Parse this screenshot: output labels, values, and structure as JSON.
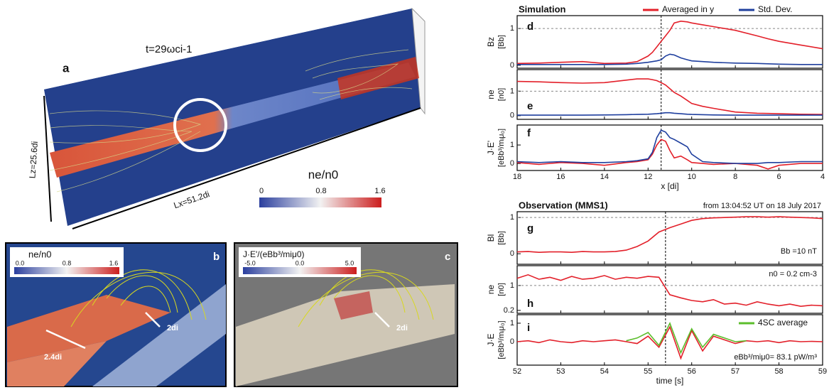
{
  "figure": {
    "panel_a": {
      "label": "a",
      "time": "t=29ωci-1",
      "lz": "Lz=25.6di",
      "lx": "Lx=51.2di",
      "colorbar_title": "ne/n0",
      "colorbar_ticks": [
        "0",
        "0.8",
        "1.6"
      ]
    },
    "panel_b": {
      "label": "b",
      "colorbar_title": "ne/n0",
      "colorbar_ticks": [
        "0.0",
        "0.8",
        "1.6"
      ],
      "width_label": "2.4di",
      "depth_label": "2di"
    },
    "panel_c": {
      "label": "c",
      "colorbar_title": "J·E'/(eBb³/miμ0)",
      "colorbar_ticks": [
        "-5.0",
        "0.0",
        "5.0"
      ],
      "depth_label": "2di"
    }
  },
  "chart_data": [
    {
      "type": "line",
      "title": "Simulation",
      "panel": "d",
      "ylabel": "Bz",
      "yunit": "[Bb]",
      "x": [
        18,
        17,
        16,
        15,
        14,
        13,
        12.5,
        12,
        11.8,
        11.6,
        11.4,
        11.2,
        11,
        10.8,
        10.5,
        10.2,
        10,
        9.5,
        9,
        8,
        7,
        6.5,
        6,
        5,
        4
      ],
      "series": [
        {
          "name": "Averaged in y",
          "color": "#e3202a",
          "values": [
            0.05,
            0.06,
            0.08,
            0.1,
            0.05,
            0.06,
            0.1,
            0.25,
            0.35,
            0.5,
            0.65,
            0.8,
            0.95,
            1.15,
            1.2,
            1.18,
            1.15,
            1.1,
            1.05,
            0.95,
            0.8,
            0.72,
            0.65,
            0.55,
            0.45
          ]
        },
        {
          "name": "Std. Dev.",
          "color": "#1f3f9e",
          "values": [
            0.02,
            0.02,
            0.02,
            0.02,
            0.02,
            0.03,
            0.05,
            0.08,
            0.1,
            0.12,
            0.15,
            0.25,
            0.3,
            0.28,
            0.2,
            0.15,
            0.12,
            0.1,
            0.08,
            0.06,
            0.05,
            0.04,
            0.03,
            0.02,
            0.02
          ]
        }
      ],
      "xlim": [
        18,
        4
      ],
      "xticks": [
        18,
        16,
        14,
        12,
        10,
        8,
        6,
        4
      ],
      "ylim": [
        -0.08,
        1.35
      ],
      "yticks": [
        0,
        1
      ],
      "hline": 1,
      "vline": 11.4
    },
    {
      "type": "line",
      "panel": "e",
      "ylabel": "ne",
      "yunit": "[n0]",
      "x": [
        18,
        17,
        16,
        15,
        14,
        13,
        12.5,
        12,
        11.8,
        11.6,
        11.4,
        11.2,
        11,
        10.8,
        10.5,
        10.2,
        10,
        9.5,
        9,
        8,
        7,
        6.5,
        6,
        5,
        4
      ],
      "series": [
        {
          "color": "#e3202a",
          "values": [
            1.4,
            1.38,
            1.35,
            1.33,
            1.35,
            1.45,
            1.5,
            1.5,
            1.47,
            1.43,
            1.35,
            1.25,
            1.1,
            0.95,
            0.8,
            0.62,
            0.5,
            0.38,
            0.3,
            0.15,
            0.1,
            0.09,
            0.08,
            0.06,
            0.05
          ]
        },
        {
          "color": "#1f3f9e",
          "values": [
            0.02,
            0.02,
            0.02,
            0.02,
            0.03,
            0.04,
            0.05,
            0.06,
            0.07,
            0.08,
            0.1,
            0.12,
            0.12,
            0.1,
            0.08,
            0.06,
            0.05,
            0.04,
            0.03,
            0.02,
            0.02,
            0.02,
            0.02,
            0.02,
            0.02
          ]
        }
      ],
      "xlim": [
        18,
        4
      ],
      "xticks": [
        18,
        16,
        14,
        12,
        10,
        8,
        6,
        4
      ],
      "ylim": [
        -0.15,
        1.88
      ],
      "yticks": [
        0,
        1
      ],
      "hline": 1,
      "vline": 11.4
    },
    {
      "type": "line",
      "panel": "f",
      "ylabel": "J·E'",
      "yunit": "[eBb³/mᵢμ₀]",
      "xlabel": "x [di]",
      "x": [
        18,
        17,
        16,
        15,
        14,
        13,
        12.5,
        12,
        11.8,
        11.6,
        11.4,
        11.2,
        11,
        10.8,
        10.5,
        10.2,
        10,
        9.5,
        9,
        8,
        7,
        6.5,
        6,
        5,
        4
      ],
      "series": [
        {
          "color": "#e3202a",
          "values": [
            0.05,
            -0.05,
            0.05,
            0,
            -0.1,
            0.05,
            0.1,
            0.2,
            0.5,
            1.0,
            1.3,
            1.2,
            0.7,
            0.3,
            0.4,
            0.2,
            0.05,
            0,
            -0.05,
            0,
            -0.1,
            -0.3,
            -0.1,
            0,
            0
          ]
        },
        {
          "color": "#1f3f9e",
          "values": [
            0.1,
            0.05,
            0.1,
            0.05,
            0.05,
            0.1,
            0.15,
            0.25,
            0.6,
            1.4,
            1.8,
            1.7,
            1.4,
            1.3,
            1.1,
            0.9,
            0.5,
            0.1,
            0.05,
            0,
            0,
            0.05,
            0.05,
            0.1,
            0.1
          ]
        }
      ],
      "xlim": [
        18,
        4
      ],
      "xticks": [
        18,
        16,
        14,
        12,
        10,
        8,
        6,
        4
      ],
      "ylim": [
        -0.38,
        2.08
      ],
      "yticks": [
        0,
        1
      ],
      "vline": 11.4
    },
    {
      "type": "line",
      "title": "Observation (MMS1)",
      "subtitle": "from 13:04:52 UT on 18 July 2017",
      "panel": "g",
      "ylabel": "Bl",
      "yunit": "[Bb]",
      "annotation": "Bb =10 nT",
      "x": [
        52,
        52.25,
        52.5,
        52.75,
        53,
        53.25,
        53.5,
        53.75,
        54,
        54.25,
        54.5,
        54.75,
        55,
        55.25,
        55.5,
        55.75,
        56,
        56.25,
        56.5,
        56.75,
        57,
        57.25,
        57.5,
        57.75,
        58,
        58.25,
        58.5,
        58.75,
        59
      ],
      "series": [
        {
          "color": "#e3202a",
          "values": [
            0.05,
            0.06,
            0.04,
            0.05,
            0.05,
            0.04,
            0.06,
            0.05,
            0.05,
            0.06,
            0.1,
            0.2,
            0.35,
            0.6,
            0.72,
            0.82,
            0.92,
            0.97,
            0.99,
            1.0,
            1.01,
            1.02,
            1.02,
            1.01,
            1.02,
            1.01,
            1.0,
            0.99,
            0.97
          ]
        }
      ],
      "xlim": [
        52,
        59
      ],
      "xticks": [
        52,
        53,
        54,
        55,
        56,
        57,
        58,
        59
      ],
      "ylim": [
        -0.29,
        1.16
      ],
      "yticks": [
        0,
        1
      ],
      "hline": 1,
      "vline": 55.4
    },
    {
      "type": "line",
      "panel": "h",
      "ylabel": "ne",
      "yunit": "[n0]",
      "annotation": "n0 = 0.2 cm-3",
      "log_y": true,
      "x": [
        52,
        52.25,
        52.5,
        52.75,
        53,
        53.25,
        53.5,
        53.75,
        54,
        54.25,
        54.5,
        54.75,
        55,
        55.25,
        55.5,
        55.75,
        56,
        56.25,
        56.5,
        56.75,
        57,
        57.25,
        57.5,
        57.75,
        58,
        58.25,
        58.5,
        58.75,
        59
      ],
      "series": [
        {
          "color": "#e3202a",
          "values": [
            1.6,
            2.0,
            1.5,
            1.7,
            1.4,
            1.8,
            1.5,
            1.6,
            1.9,
            1.5,
            1.7,
            1.6,
            1.8,
            1.7,
            0.55,
            0.45,
            0.38,
            0.35,
            0.4,
            0.3,
            0.32,
            0.28,
            0.35,
            0.3,
            0.27,
            0.3,
            0.26,
            0.28,
            0.27
          ]
        }
      ],
      "xlim": [
        52,
        59
      ],
      "xticks": [
        52,
        53,
        54,
        55,
        56,
        57,
        58,
        59
      ],
      "ylim": [
        0.166,
        3.6
      ],
      "yticks": [
        0.2,
        1
      ],
      "hline": 1,
      "vline": 55.4
    },
    {
      "type": "line",
      "panel": "i",
      "ylabel": "J·E",
      "yunit": "[eBb³/mᵢμ₀]",
      "xlabel": "time [s]",
      "annotation": "eBb³/miμ0= 83.1 pW/m³",
      "x": [
        52,
        52.25,
        52.5,
        52.75,
        53,
        53.25,
        53.5,
        53.75,
        54,
        54.25,
        54.5,
        54.75,
        55,
        55.25,
        55.5,
        55.75,
        56,
        56.25,
        56.5,
        56.75,
        57,
        57.25,
        57.5,
        57.75,
        58,
        58.25,
        58.5,
        58.75,
        59
      ],
      "series": [
        {
          "color": "#e3202a",
          "values": [
            0,
            0.05,
            -0.05,
            0.1,
            0,
            -0.05,
            0.05,
            0,
            0.05,
            0.1,
            0,
            -0.1,
            0.3,
            -0.3,
            0.8,
            -0.9,
            0.6,
            -0.5,
            0.3,
            0.1,
            -0.1,
            0.05,
            0,
            0.05,
            -0.05,
            0.05,
            0,
            0.02,
            0
          ]
        },
        {
          "name": "4SC average",
          "color": "#5bbd2b",
          "values": [
            null,
            null,
            null,
            null,
            null,
            null,
            null,
            null,
            null,
            null,
            0.05,
            0.2,
            0.5,
            -0.2,
            1.0,
            -0.6,
            0.7,
            -0.3,
            0.4,
            0.2,
            0,
            0.05,
            null,
            null,
            null,
            null,
            null,
            null,
            null
          ]
        }
      ],
      "xlim": [
        52,
        59
      ],
      "xticks": [
        52,
        53,
        54,
        55,
        56,
        57,
        58,
        59
      ],
      "ylim": [
        -1.27,
        1.46
      ],
      "yticks": [
        0,
        1
      ],
      "vline": 55.4
    }
  ]
}
